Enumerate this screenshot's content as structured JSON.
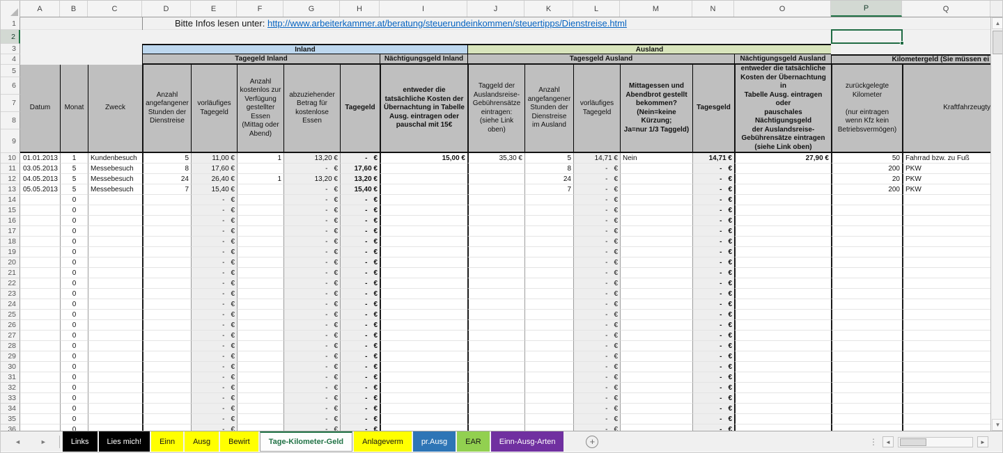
{
  "colors": {
    "accent_green": "#217346",
    "link_blue": "#0563c1",
    "inland_band": "#bdd7ee",
    "ausland_band": "#d8e4bc",
    "header_gray": "#bfbfbf",
    "tab_yellow": "#ffff00",
    "tab_blue": "#2e75b6",
    "tab_green": "#92d050",
    "tab_purple": "#7030a0"
  },
  "info_row": {
    "prefix": "Bitte Infos lesen unter: ",
    "url": "http://www.arbeiterkammer.at/beratung/steuerundeinkommen/steuertipps/Dienstreise.html"
  },
  "grid": {
    "selection": {
      "column": "P",
      "row": "2"
    },
    "row_count": 36,
    "bands": {
      "inland": "Inland",
      "ausland": "Ausland",
      "tagegeld_inland": "Tagegeld Inland",
      "naechtigungsgeld_inland": "Nächtigungsgeld Inland",
      "tagesgeld_ausland": "Tagesgeld Ausland",
      "naechtigungsgeld_ausland": "Nächtigungsgeld Ausland",
      "kilometergeld": "Kilometergeld (Sie müssen ei"
    },
    "columns": [
      {
        "letter": "A",
        "width": 57,
        "align": "right",
        "header": "Datum"
      },
      {
        "letter": "B",
        "width": 40,
        "align": "center",
        "header": "Monat"
      },
      {
        "letter": "C",
        "width": 78,
        "align": "left",
        "header": "Zweck"
      },
      {
        "letter": "D",
        "width": 70,
        "align": "right",
        "header": "Anzahl\nangefangener\nStunden der\nDienstreise",
        "thick_left": true
      },
      {
        "letter": "E",
        "width": 66,
        "align": "right",
        "header": "vorläufiges\nTagegeld",
        "shaded": true
      },
      {
        "letter": "F",
        "width": 67,
        "align": "right",
        "header": "Anzahl\nkostenlos zur\nVerfügung\ngestellter\nEssen\n(Mittag oder\nAbend)"
      },
      {
        "letter": "G",
        "width": 81,
        "align": "right",
        "header": "abzuziehender\nBetrag für\nkostenlose\nEssen",
        "shaded": true
      },
      {
        "letter": "H",
        "width": 57,
        "align": "right",
        "header": "Tagegeld",
        "header_bold": true,
        "value_bold": true,
        "shaded": true
      },
      {
        "letter": "I",
        "width": 126,
        "align": "right",
        "header": "entweder die\ntatsächliche Kosten der\nÜbernachtung in Tabelle\nAusg. eintragen oder\npauschal mit 15€",
        "header_bold": true,
        "value_bold": true,
        "thick_left": true
      },
      {
        "letter": "J",
        "width": 82,
        "align": "right",
        "header": "Taggeld der\nAuslandsreise-\nGebührensätze\neintragen:\n(siehe Link\noben)",
        "thick_left": true
      },
      {
        "letter": "K",
        "width": 70,
        "align": "right",
        "header": "Anzahl\nangefangener\nStunden der\nDienstreise\nim Ausland"
      },
      {
        "letter": "L",
        "width": 67,
        "align": "right",
        "header": "vorläufiges\nTagegeld",
        "shaded": true
      },
      {
        "letter": "M",
        "width": 104,
        "align": "left",
        "header": "Mittagessen und\nAbendbrot gestellt\nbekommen?\n(Nein=keine Kürzung;\nJa=nur 1/3 Taggeld)",
        "header_bold": true
      },
      {
        "letter": "N",
        "width": 60,
        "align": "right",
        "header": "Tagesgeld",
        "header_bold": true,
        "value_bold": true,
        "shaded": true
      },
      {
        "letter": "O",
        "width": 139,
        "align": "right",
        "header": "entweder die tatsächliche\nKosten der Übernachtung in\nTabelle Ausg. eintragen oder\npauschales Nächtigungsgeld\nder Auslandsreise-\nGebührensätze eintragen\n(siehe Link oben)",
        "header_bold": true,
        "value_bold": true,
        "thick_left": true
      },
      {
        "letter": "P",
        "width": 102,
        "align": "right",
        "header": "zurückgelegte\nKilometer\n\n(nur eintragen\nwenn Kfz kein\nBetriebsvermögen)",
        "thick_left": true
      },
      {
        "letter": "Q",
        "width": 127,
        "align": "left",
        "header": "Kraftfahrzeugty",
        "thick_left": true,
        "header_align": "right"
      }
    ],
    "data_rows": [
      {
        "n": 10,
        "cells": {
          "A": "01.01.2013",
          "B": "1",
          "C": "Kundenbesuch",
          "D": "5",
          "E": "11,00 €",
          "F": "1",
          "G": "13,20 €",
          "H": "- €",
          "I": "15,00 €",
          "J": "35,30 €",
          "K": "5",
          "L": "14,71 €",
          "M": "Nein",
          "N": "14,71 €",
          "O": "27,90 €",
          "P": "50",
          "Q": "Fahrrad bzw. zu Fuß"
        }
      },
      {
        "n": 11,
        "cells": {
          "A": "03.05.2013",
          "B": "5",
          "C": "Messebesuch",
          "D": "8",
          "E": "17,60 €",
          "F": "",
          "G": "- €",
          "H": "17,60 €",
          "I": "",
          "J": "",
          "K": "8",
          "L": "- €",
          "M": "",
          "N": "- €",
          "O": "",
          "P": "200",
          "Q": "PKW"
        }
      },
      {
        "n": 12,
        "cells": {
          "A": "04.05.2013",
          "B": "5",
          "C": "Messebesuch",
          "D": "24",
          "E": "26,40 €",
          "F": "1",
          "G": "13,20 €",
          "H": "13,20 €",
          "I": "",
          "J": "",
          "K": "24",
          "L": "- €",
          "M": "",
          "N": "- €",
          "O": "",
          "P": "20",
          "Q": "PKW"
        }
      },
      {
        "n": 13,
        "cells": {
          "A": "05.05.2013",
          "B": "5",
          "C": "Messebesuch",
          "D": "7",
          "E": "15,40 €",
          "F": "",
          "G": "- €",
          "H": "15,40 €",
          "I": "",
          "J": "",
          "K": "7",
          "L": "- €",
          "M": "",
          "N": "- €",
          "O": "",
          "P": "200",
          "Q": "PKW"
        }
      }
    ],
    "empty_rows": {
      "from": 14,
      "to": 36,
      "cells": {
        "B": "0",
        "E": "- €",
        "G": "- €",
        "H": "- €",
        "L": "- €",
        "N": "- €"
      }
    }
  },
  "sheet_tabs": {
    "items": [
      {
        "label": "Links",
        "style": "black"
      },
      {
        "label": "Lies mich!",
        "style": "black"
      },
      {
        "label": "Einn",
        "style": "yellow"
      },
      {
        "label": "Ausg",
        "style": "yellow"
      },
      {
        "label": "Bewirt",
        "style": "yellow"
      },
      {
        "label": "Tage-Kilometer-Geld",
        "style": "active"
      },
      {
        "label": "Anlageverm",
        "style": "yellow"
      },
      {
        "label": "pr.Ausg",
        "style": "blue"
      },
      {
        "label": "EAR",
        "style": "green"
      },
      {
        "label": "Einn-Ausg-Arten",
        "style": "purple"
      }
    ],
    "add_label": "+",
    "nav_left": "◄",
    "nav_right": "►",
    "hscroll_left": "◄",
    "hscroll_right": "►",
    "vscroll_up": "▲",
    "vscroll_down": "▼",
    "dots": "⋮"
  }
}
